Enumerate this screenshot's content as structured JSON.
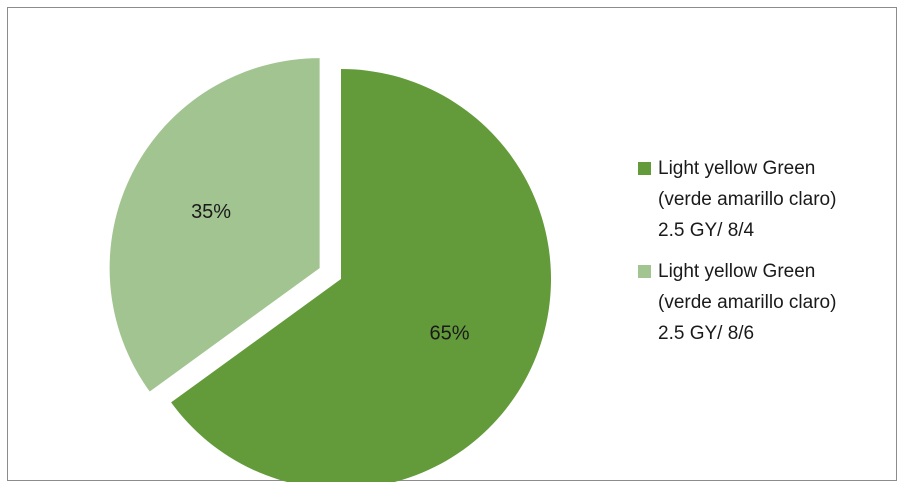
{
  "chart_data": {
    "type": "pie",
    "title": "",
    "slices": [
      {
        "label": "Light yellow Green\n(verde amarillo claro)\n2.5 GY/ 8/4",
        "value": 65,
        "display": "65%",
        "color": "#639b3b"
      },
      {
        "label": "Light yellow Green\n(verde amarillo claro)\n2.5 GY/ 8/6",
        "value": 35,
        "display": "35%",
        "color": "#a2c490"
      }
    ],
    "start_angle_deg": 0,
    "exploded_slice": 1,
    "legend_position": "right"
  }
}
